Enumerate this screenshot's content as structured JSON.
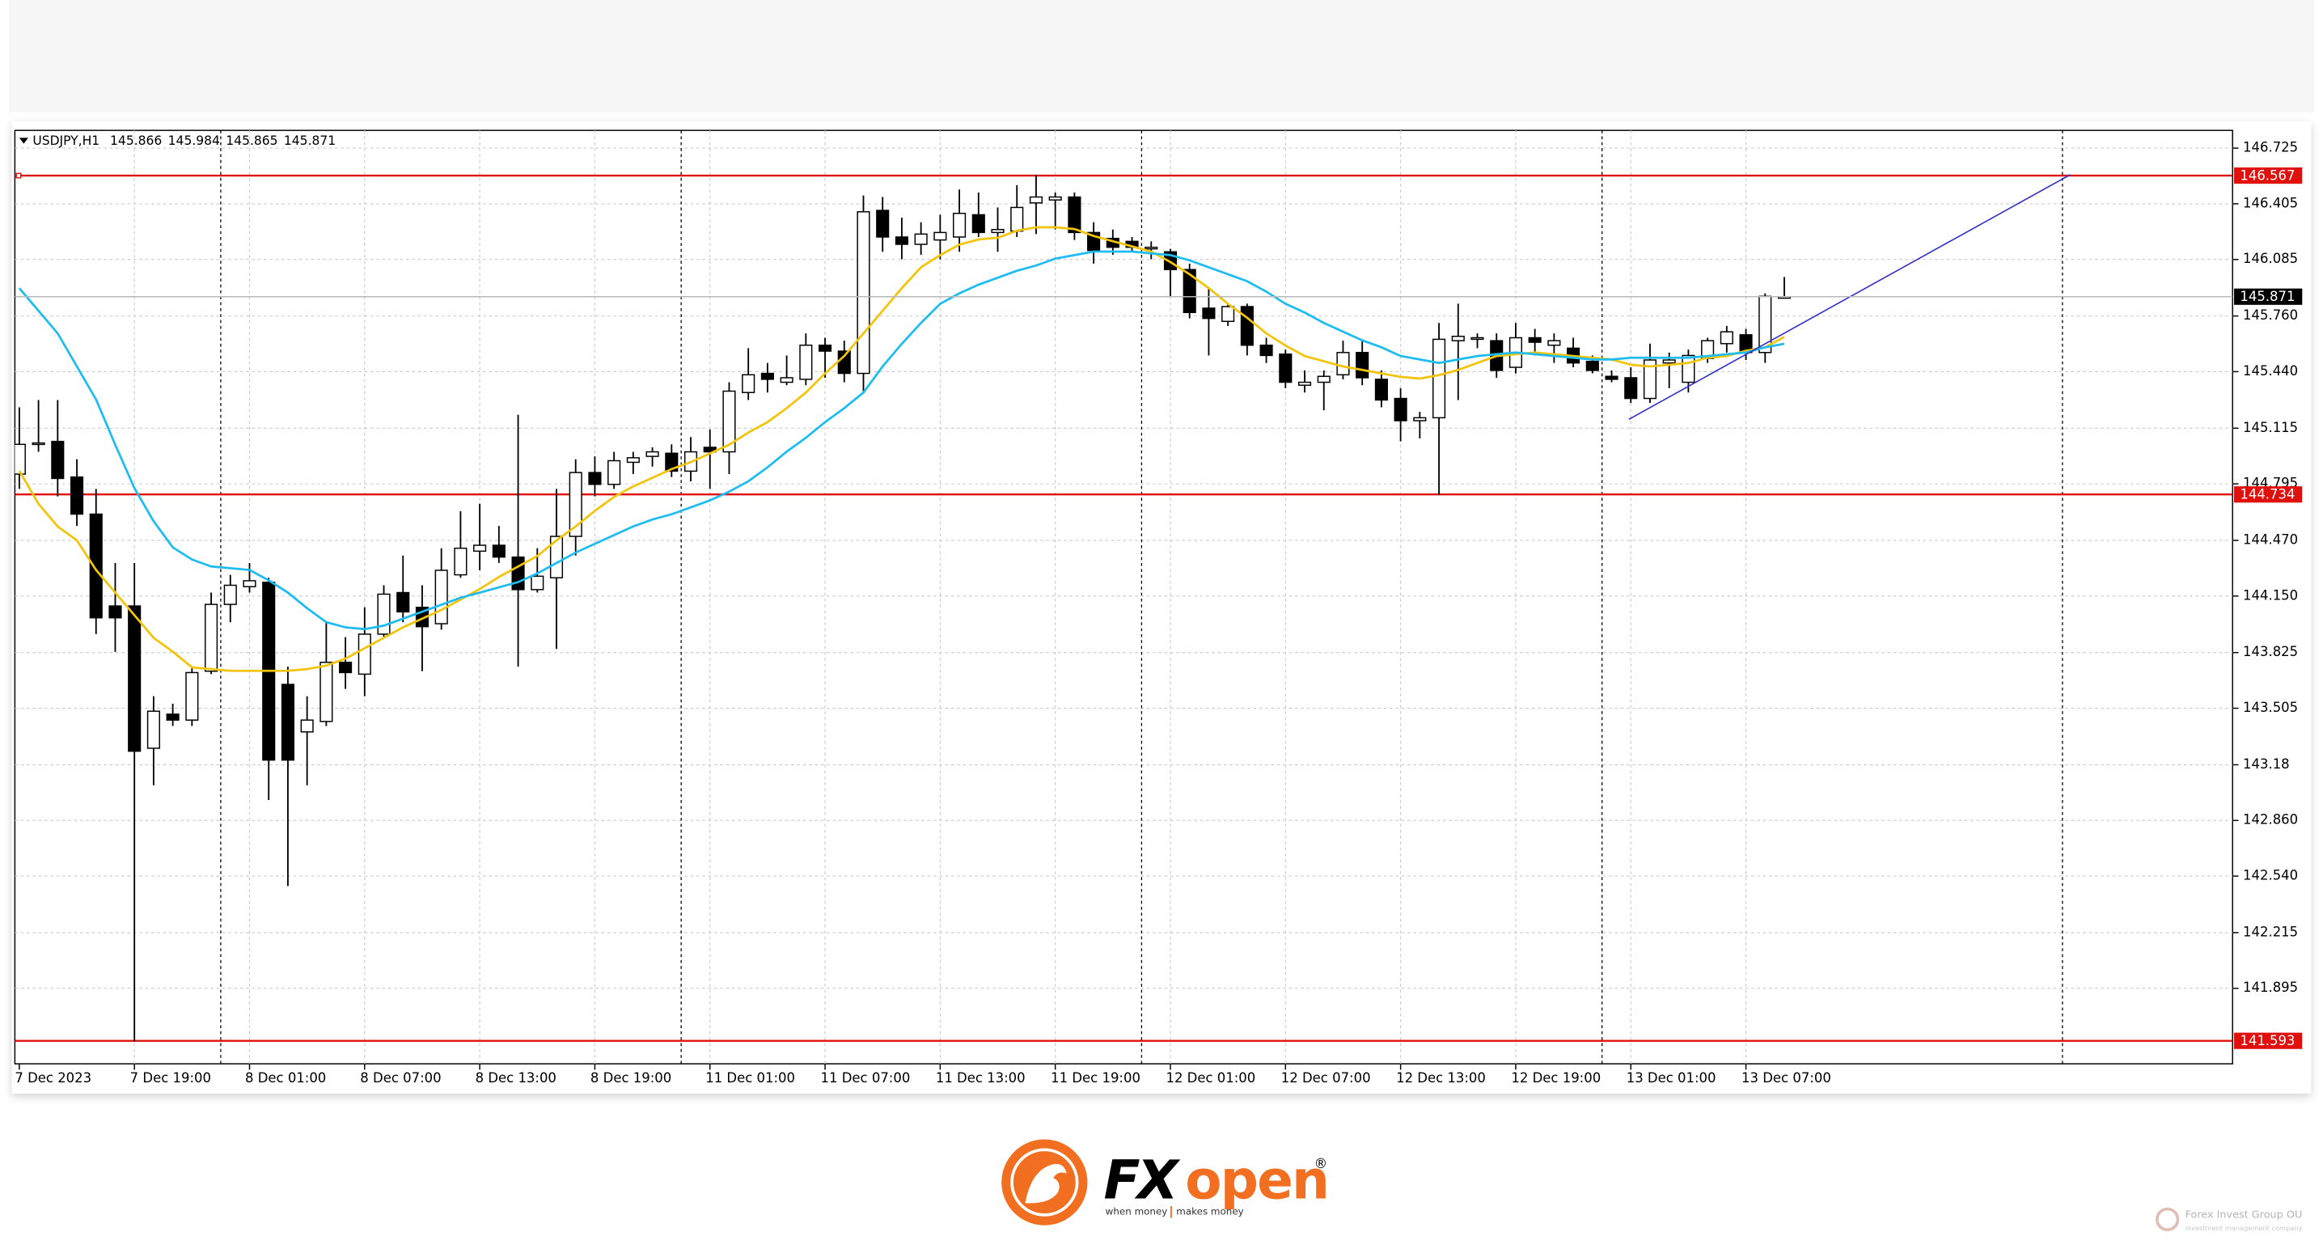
{
  "chart_data": {
    "type": "candlestick",
    "symbol": "USDJPY,H1",
    "categories": [
      "7 Dec 2023",
      null,
      null,
      null,
      null,
      null,
      "7 Dec 19:00",
      null,
      null,
      null,
      null,
      null,
      "8 Dec 01:00",
      null,
      null,
      null,
      null,
      null,
      "8 Dec 07:00",
      null,
      null,
      null,
      null,
      null,
      "8 Dec 13:00",
      null,
      null,
      null,
      null,
      null,
      "8 Dec 19:00",
      null,
      null,
      null,
      null,
      null,
      "11 Dec 01:00",
      null,
      null,
      null,
      null,
      null,
      "11 Dec 07:00",
      null,
      null,
      null,
      null,
      null,
      "11 Dec 13:00",
      null,
      null,
      null,
      null,
      null,
      "11 Dec 19:00",
      null,
      null,
      null,
      null,
      null,
      "12 Dec 01:00",
      null,
      null,
      null,
      null,
      null,
      "12 Dec 07:00",
      null,
      null,
      null,
      null,
      null,
      "12 Dec 13:00",
      null,
      null,
      null,
      null,
      null,
      "12 Dec 19:00",
      null,
      null,
      null,
      null,
      null,
      "13 Dec 01:00",
      null,
      null,
      null,
      null,
      null,
      "13 Dec 07:00",
      null,
      null
    ],
    "open": [
      144.851,
      145.022,
      145.039,
      144.834,
      144.621,
      144.093,
      144.093,
      143.275,
      143.471,
      143.437,
      143.718,
      144.102,
      144.204,
      144.229,
      143.642,
      143.369,
      143.429,
      143.769,
      143.701,
      143.931,
      144.17,
      144.085,
      143.991,
      144.272,
      144.408,
      144.442,
      144.374,
      144.187,
      144.255,
      144.493,
      144.86,
      144.792,
      144.919,
      144.953,
      144.971,
      144.868,
      145.005,
      144.979,
      145.32,
      145.43,
      145.379,
      145.396,
      145.592,
      145.558,
      145.43,
      146.367,
      146.214,
      146.172,
      146.197,
      146.214,
      146.342,
      146.24,
      146.248,
      146.41,
      146.427,
      146.444,
      146.24,
      146.206,
      146.189,
      146.146,
      146.129,
      146.027,
      145.805,
      145.729,
      145.814,
      145.592,
      145.541,
      145.362,
      145.379,
      145.422,
      145.55,
      145.396,
      145.286,
      145.158,
      145.175,
      145.618,
      145.626,
      145.618,
      145.465,
      145.635,
      145.592,
      145.575,
      145.499,
      145.413,
      145.405,
      145.286,
      145.49,
      145.379,
      145.516,
      145.601,
      145.652,
      145.55,
      145.866
    ],
    "high": [
      145.235,
      145.277,
      145.277,
      144.936,
      144.766,
      144.34,
      144.34,
      143.574,
      143.531,
      143.744,
      144.17,
      144.272,
      144.34,
      144.255,
      143.744,
      143.574,
      143.999,
      143.914,
      144.085,
      144.212,
      144.383,
      144.212,
      144.425,
      144.638,
      144.681,
      144.553,
      145.192,
      144.425,
      144.766,
      144.936,
      144.953,
      144.979,
      144.979,
      145.005,
      145.022,
      145.064,
      145.107,
      145.379,
      145.575,
      145.49,
      145.533,
      145.66,
      145.635,
      145.618,
      146.453,
      146.444,
      146.325,
      146.299,
      146.342,
      146.487,
      146.47,
      146.384,
      146.512,
      146.572,
      146.47,
      146.47,
      146.299,
      146.257,
      146.214,
      146.189,
      146.146,
      146.061,
      145.916,
      145.831,
      145.831,
      145.635,
      145.567,
      145.447,
      145.447,
      145.618,
      145.618,
      145.447,
      145.345,
      145.209,
      145.72,
      145.831,
      145.66,
      145.66,
      145.72,
      145.686,
      145.66,
      145.635,
      145.533,
      145.447,
      145.465,
      145.601,
      145.55,
      145.567,
      145.635,
      145.703,
      145.686,
      145.89,
      145.984
    ],
    "low": [
      144.766,
      144.979,
      144.723,
      144.553,
      143.931,
      143.829,
      141.589,
      143.062,
      143.403,
      143.403,
      143.701,
      143.999,
      144.17,
      142.977,
      142.483,
      143.062,
      143.403,
      143.616,
      143.574,
      143.914,
      143.999,
      143.718,
      143.957,
      144.255,
      144.298,
      144.34,
      143.744,
      144.17,
      143.846,
      144.383,
      144.723,
      144.766,
      144.851,
      144.894,
      144.834,
      144.809,
      144.766,
      144.851,
      145.277,
      145.32,
      145.362,
      145.362,
      145.405,
      145.379,
      145.32,
      146.129,
      146.086,
      146.112,
      146.086,
      146.129,
      146.214,
      146.129,
      146.214,
      146.231,
      146.257,
      146.197,
      146.061,
      146.112,
      146.129,
      146.086,
      145.873,
      145.746,
      145.533,
      145.703,
      145.533,
      145.49,
      145.345,
      145.32,
      145.218,
      145.396,
      145.362,
      145.235,
      145.039,
      145.056,
      144.732,
      145.277,
      145.575,
      145.405,
      145.43,
      145.533,
      145.49,
      145.465,
      145.43,
      145.379,
      145.26,
      145.26,
      145.345,
      145.32,
      145.49,
      145.55,
      145.507,
      145.49,
      145.865
    ],
    "close": [
      145.022,
      145.03,
      144.826,
      144.621,
      144.025,
      144.025,
      143.258,
      143.488,
      143.437,
      143.71,
      144.102,
      144.212,
      144.238,
      143.207,
      143.207,
      143.437,
      143.769,
      143.71,
      143.931,
      144.161,
      144.059,
      143.974,
      144.298,
      144.425,
      144.442,
      144.374,
      144.187,
      144.264,
      144.493,
      144.86,
      144.792,
      144.928,
      144.945,
      144.979,
      144.868,
      144.979,
      144.979,
      145.328,
      145.422,
      145.396,
      145.405,
      145.592,
      145.558,
      145.43,
      146.359,
      146.214,
      146.172,
      146.231,
      146.24,
      146.35,
      146.24,
      146.257,
      146.384,
      146.444,
      146.444,
      146.24,
      146.137,
      146.155,
      146.155,
      146.155,
      146.027,
      145.78,
      145.746,
      145.814,
      145.592,
      145.533,
      145.379,
      145.379,
      145.413,
      145.55,
      145.405,
      145.277,
      145.158,
      145.175,
      145.626,
      145.643,
      145.635,
      145.447,
      145.635,
      145.609,
      145.618,
      145.49,
      145.447,
      145.396,
      145.286,
      145.507,
      145.507,
      145.533,
      145.618,
      145.669,
      145.55,
      145.873,
      145.871
    ],
    "up_color": "#ffffff",
    "down_color": "#000000",
    "moving_averages": [
      {
        "color": "#f2c40c",
        "values": [
          144.87,
          144.68,
          144.55,
          144.47,
          144.3,
          144.17,
          144.04,
          143.91,
          143.83,
          143.74,
          143.73,
          143.72,
          143.72,
          143.72,
          143.72,
          143.73,
          143.75,
          143.79,
          143.85,
          143.91,
          143.97,
          144.02,
          144.07,
          144.13,
          144.19,
          144.26,
          144.32,
          144.38,
          144.47,
          144.55,
          144.64,
          144.72,
          144.78,
          144.83,
          144.88,
          144.92,
          144.97,
          145.02,
          145.09,
          145.15,
          145.23,
          145.32,
          145.43,
          145.53,
          145.66,
          145.79,
          145.92,
          146.04,
          146.11,
          146.17,
          146.2,
          146.21,
          146.25,
          146.27,
          146.27,
          146.26,
          146.22,
          146.19,
          146.16,
          146.13,
          146.07,
          146.0,
          145.92,
          145.83,
          145.75,
          145.66,
          145.59,
          145.53,
          145.5,
          145.47,
          145.45,
          145.43,
          145.41,
          145.4,
          145.42,
          145.45,
          145.49,
          145.53,
          145.54,
          145.55,
          145.54,
          145.53,
          145.52,
          145.51,
          145.48,
          145.47,
          145.48,
          145.49,
          145.52,
          145.53,
          145.56,
          145.58,
          145.64
        ]
      },
      {
        "color": "#1ebcf0",
        "values": [
          145.92,
          145.79,
          145.66,
          145.47,
          145.28,
          145.02,
          144.77,
          144.58,
          144.43,
          144.36,
          144.32,
          144.31,
          144.3,
          144.24,
          144.17,
          144.08,
          144.0,
          143.97,
          143.96,
          143.98,
          144.02,
          144.06,
          144.1,
          144.14,
          144.17,
          144.2,
          144.23,
          144.28,
          144.34,
          144.4,
          144.45,
          144.5,
          144.55,
          144.59,
          144.62,
          144.66,
          144.7,
          144.75,
          144.81,
          144.89,
          144.98,
          145.06,
          145.15,
          145.23,
          145.32,
          145.47,
          145.6,
          145.72,
          145.83,
          145.89,
          145.94,
          145.98,
          146.02,
          146.05,
          146.09,
          146.11,
          146.13,
          146.13,
          146.13,
          146.12,
          146.11,
          146.08,
          146.04,
          146.0,
          145.96,
          145.9,
          145.83,
          145.78,
          145.72,
          145.67,
          145.62,
          145.58,
          145.53,
          145.51,
          145.49,
          145.51,
          145.53,
          145.54,
          145.55,
          145.54,
          145.53,
          145.52,
          145.51,
          145.51,
          145.52,
          145.52,
          145.52,
          145.52,
          145.53,
          145.54,
          145.55,
          145.58,
          145.6
        ]
      }
    ],
    "levels": {
      "color": "#e0100c",
      "values": [
        146.567,
        144.734,
        141.593
      ]
    },
    "trendline": {
      "color": "#3434c8",
      "x": [
        83.9,
        106.9
      ],
      "y": [
        145.166,
        146.572
      ]
    },
    "ylim": [
      141.461,
      146.827
    ],
    "yticks": [
      141.895,
      142.215,
      {
        "value": 142.54,
        "label": "142.540"
      },
      {
        "value": 142.86,
        "label": "142.860"
      },
      143.18,
      143.505,
      143.825,
      {
        "value": 144.15,
        "label": "144.150"
      },
      {
        "value": 144.47,
        "label": "144.470"
      },
      144.795,
      145.115,
      {
        "value": 145.44,
        "label": "145.440"
      },
      {
        "value": 145.76,
        "label": "145.760"
      },
      146.085,
      146.405,
      146.725
    ],
    "grid": true
  },
  "footer": {
    "brand_fx": "FX",
    "brand_open": "open",
    "registered": "®",
    "tagline_left": "when money",
    "tagline_right": "makes money",
    "watermark_name": "Forex Invest Group OU",
    "watermark_subtitle": "investment management company"
  }
}
